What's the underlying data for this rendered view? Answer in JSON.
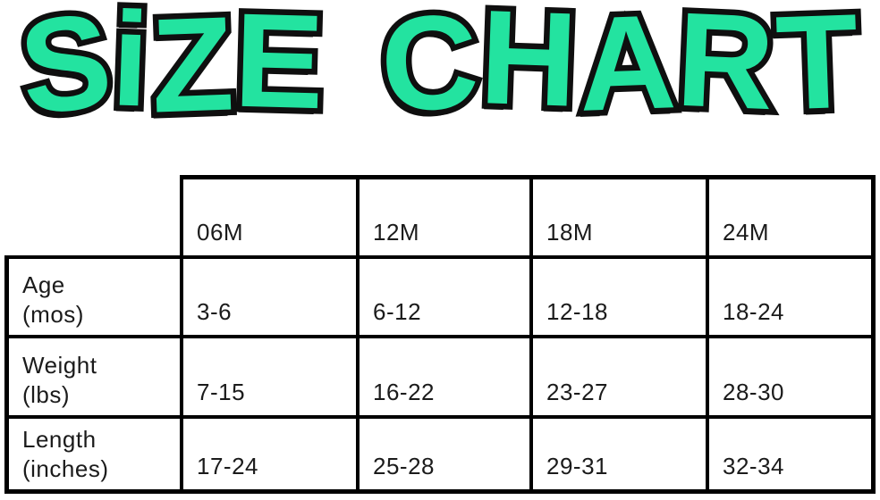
{
  "title": {
    "text": "SiZE CHART"
  },
  "colors": {
    "title_fill": "#23E3A0",
    "title_outline": "#0f0f0f",
    "table_border": "#000000",
    "text": "#1b1b1b",
    "background": "#ffffff"
  },
  "size_chart": {
    "columns": [
      "06M",
      "12M",
      "18M",
      "24M"
    ],
    "rows": [
      {
        "label": "Age",
        "unit": "(mos)",
        "values": [
          "3-6",
          "6-12",
          "12-18",
          "18-24"
        ]
      },
      {
        "label": "Weight",
        "unit": "(lbs)",
        "values": [
          "7-15",
          "16-22",
          "23-27",
          "28-30"
        ]
      },
      {
        "label": "Length",
        "unit": "(inches)",
        "values": [
          "17-24",
          "25-28",
          "29-31",
          "32-34"
        ]
      }
    ]
  },
  "chart_data": {
    "type": "table",
    "title": "SIZE CHART",
    "columns": [
      "",
      "06M",
      "12M",
      "18M",
      "24M"
    ],
    "rows": [
      [
        "Age (mos)",
        "3-6",
        "6-12",
        "12-18",
        "18-24"
      ],
      [
        "Weight (lbs)",
        "7-15",
        "16-22",
        "23-27",
        "28-30"
      ],
      [
        "Length (inches)",
        "17-24",
        "25-28",
        "29-31",
        "32-34"
      ]
    ]
  }
}
